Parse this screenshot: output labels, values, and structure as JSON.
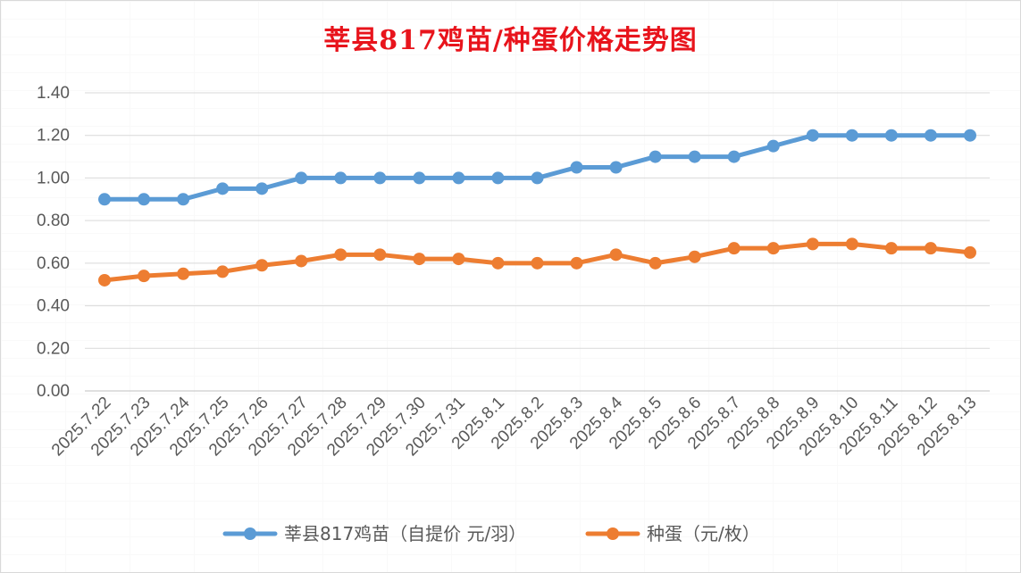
{
  "chart_data": {
    "type": "line",
    "title": "莘县817鸡苗/种蛋价格走势图",
    "categories": [
      "2025.7.22",
      "2025.7.23",
      "2025.7.24",
      "2025.7.25",
      "2025.7.26",
      "2025.7.27",
      "2025.7.28",
      "2025.7.29",
      "2025.7.30",
      "2025.7.31",
      "2025.8.1",
      "2025.8.2",
      "2025.8.3",
      "2025.8.4",
      "2025.8.5",
      "2025.8.6",
      "2025.8.7",
      "2025.8.8",
      "2025.8.9",
      "2025.8.10",
      "2025.8.11",
      "2025.8.12",
      "2025.8.13"
    ],
    "series": [
      {
        "name": "莘县817鸡苗（自提价 元/羽）",
        "color": "#5b9bd5",
        "values": [
          0.9,
          0.9,
          0.9,
          0.95,
          0.95,
          1.0,
          1.0,
          1.0,
          1.0,
          1.0,
          1.0,
          1.0,
          1.05,
          1.05,
          1.1,
          1.1,
          1.1,
          1.15,
          1.2,
          1.2,
          1.2,
          1.2,
          1.2
        ]
      },
      {
        "name": "种蛋（元/枚）",
        "color": "#ed7d31",
        "values": [
          0.52,
          0.54,
          0.55,
          0.56,
          0.59,
          0.61,
          0.64,
          0.64,
          0.62,
          0.62,
          0.6,
          0.6,
          0.6,
          0.64,
          0.6,
          0.63,
          0.67,
          0.67,
          0.69,
          0.69,
          0.67,
          0.67,
          0.65
        ]
      }
    ],
    "yticks": [
      "0.00",
      "0.20",
      "0.40",
      "0.60",
      "0.80",
      "1.00",
      "1.20",
      "1.40"
    ],
    "ylim": [
      0,
      1.4
    ],
    "grid": true,
    "legend": "bottom"
  }
}
